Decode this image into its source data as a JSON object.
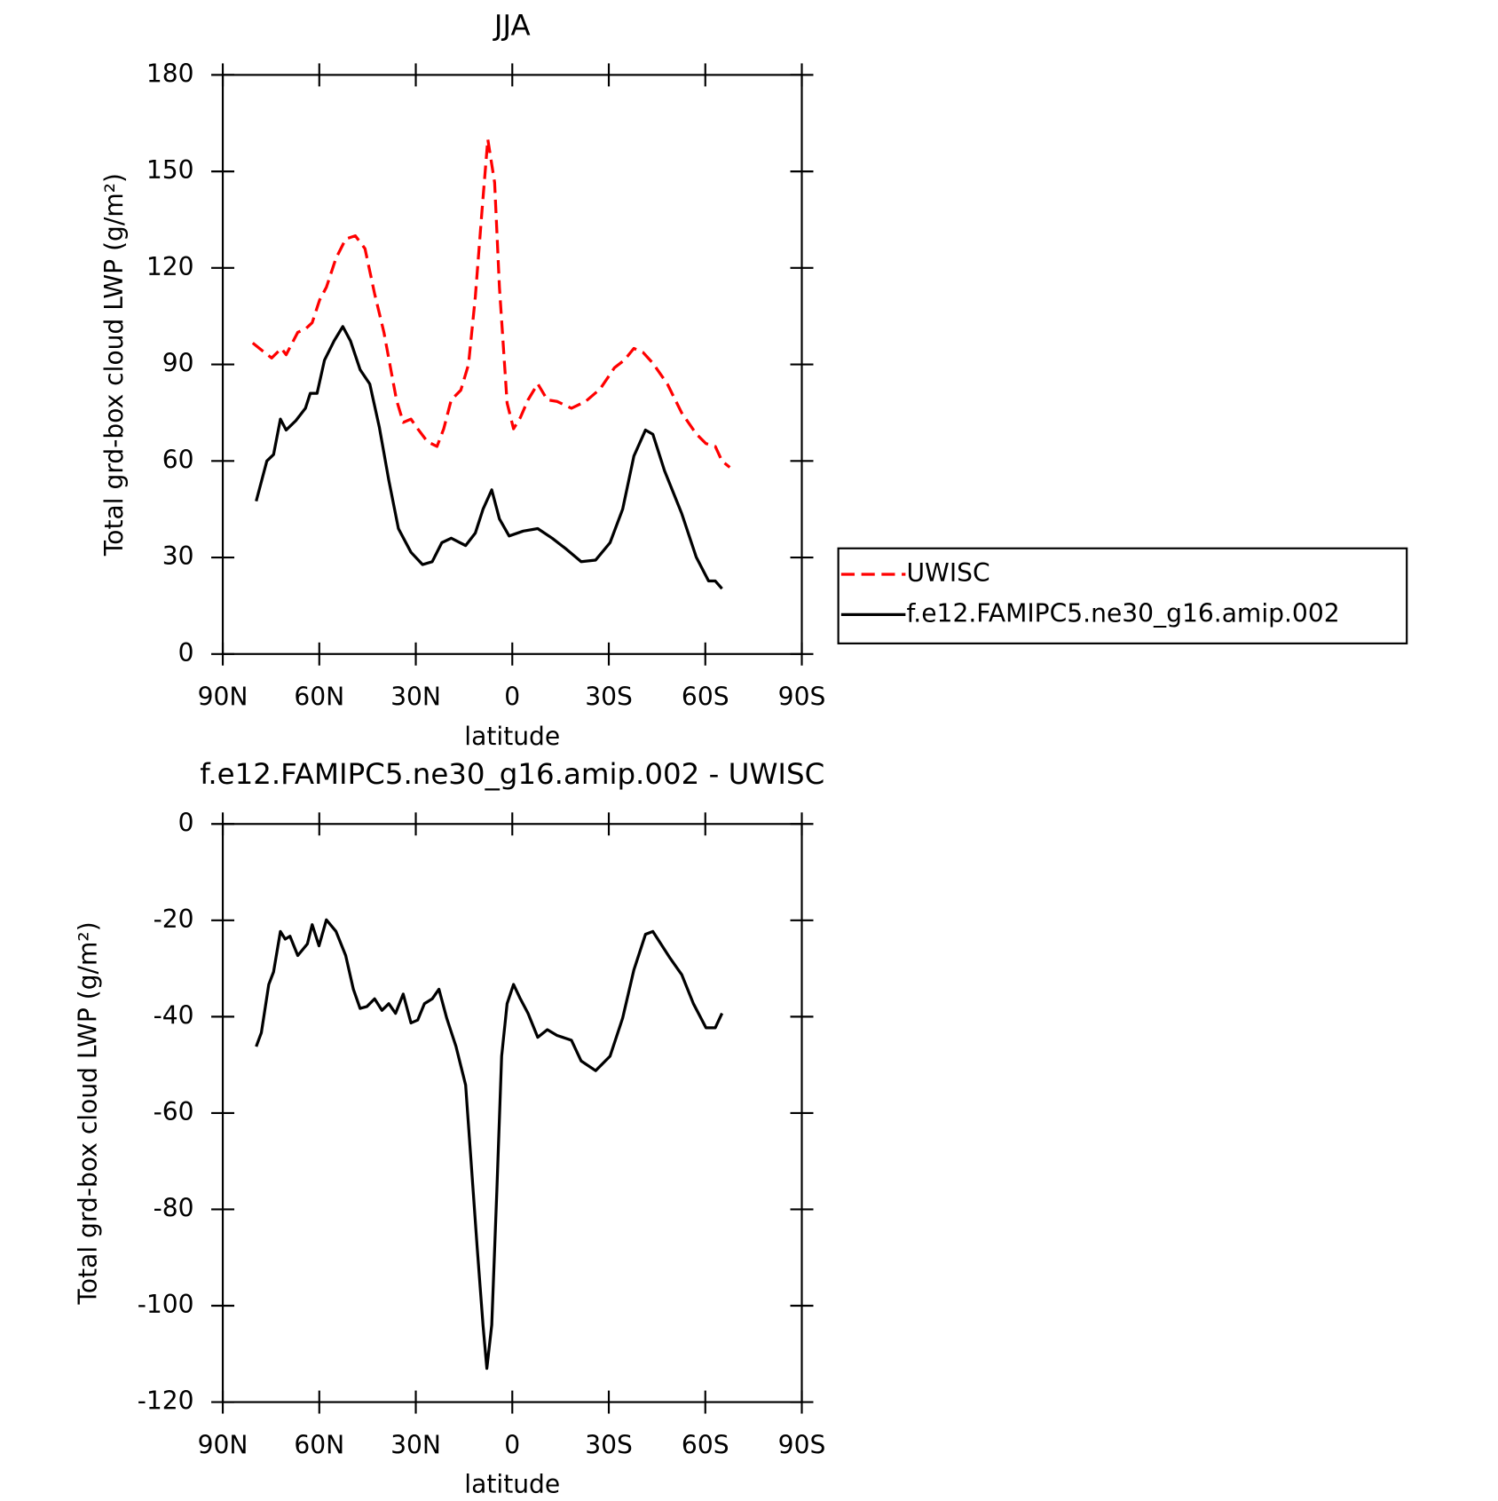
{
  "chart_data": [
    {
      "type": "line",
      "title": "JJA",
      "xlabel": "latitude",
      "ylabel": "Total grd-box cloud LWP (g/m²)",
      "xlim": [
        90,
        -90
      ],
      "xticks": [
        {
          "value": 90,
          "label": "90N"
        },
        {
          "value": 60,
          "label": "60N"
        },
        {
          "value": 30,
          "label": "30N"
        },
        0,
        {
          "value": -30,
          "label": "30S"
        },
        {
          "value": -60,
          "label": "60S"
        },
        {
          "value": -90,
          "label": "90S"
        }
      ],
      "ylim": [
        0,
        180
      ],
      "yticks": [
        0,
        30,
        60,
        90,
        120,
        150,
        180
      ],
      "legend": true,
      "series": [
        {
          "name": "UWISC",
          "color": "#ff0000",
          "dashed": true,
          "x": [
            80.7,
            78.6,
            74.8,
            71.8,
            70.3,
            66.7,
            64.3,
            62.2,
            59.9,
            57.8,
            54.8,
            51.8,
            48.8,
            45.8,
            42.8,
            39.9,
            37.5,
            36,
            33.9,
            31.5,
            29.4,
            26.4,
            23.4,
            21.3,
            19,
            16,
            13.6,
            11.5,
            9.4,
            7.6,
            5.5,
            4,
            1.6,
            -0.4,
            -2.5,
            -4.9,
            -7.9,
            -10.9,
            -13.9,
            -18.4,
            -22.8,
            -27.3,
            -31.8,
            -34.8,
            -37.8,
            -40.7,
            -43.7,
            -48.2,
            -52.7,
            -57.2,
            -60.2,
            -63.1,
            -65.2,
            -67.6
          ],
          "values": [
            96.7,
            95,
            92,
            95,
            93,
            100,
            101,
            103,
            110,
            114,
            123,
            129,
            130,
            126,
            112,
            100,
            87,
            79,
            72,
            73,
            70,
            66,
            64.5,
            70,
            79,
            82,
            90,
            111,
            138,
            160,
            146.5,
            114,
            78,
            70,
            73.5,
            79,
            84,
            79,
            78.5,
            76.4,
            78.5,
            82.4,
            89,
            91.3,
            95,
            93.7,
            90.4,
            83.9,
            74.9,
            68.4,
            65.4,
            64.5,
            60,
            58
          ]
        },
        {
          "name": "f.e12.FAMIPC5.ne30_g16.amip.002",
          "color": "#000000",
          "dashed": false,
          "x": [
            79.6,
            76.3,
            74.2,
            72.1,
            70.3,
            67.3,
            64.3,
            62.8,
            60.7,
            58.4,
            55.4,
            52.7,
            50.3,
            47.3,
            44.3,
            41.3,
            38.4,
            35.4,
            31.5,
            27.9,
            24.9,
            21.9,
            19,
            14.5,
            11.5,
            9.1,
            6.4,
            4,
            1,
            -3.4,
            -7.9,
            -12.4,
            -16.9,
            -21.4,
            -25.9,
            -30.4,
            -34.3,
            -37.8,
            -41.4,
            -43.7,
            -47.3,
            -52.7,
            -57.2,
            -61,
            -63.1,
            -65.2
          ],
          "values": [
            47.5,
            60,
            62,
            73,
            69.6,
            72.5,
            76.4,
            81,
            81,
            91.3,
            97.3,
            101.8,
            97.3,
            88.4,
            83.9,
            70.4,
            54,
            39,
            31.6,
            27.8,
            28.7,
            34.6,
            36,
            33.7,
            37.6,
            45,
            51,
            42,
            36.7,
            38.2,
            39,
            36,
            32.5,
            28.7,
            29.2,
            34.6,
            45,
            61.5,
            69.6,
            68.3,
            57,
            43.6,
            30.1,
            22.7,
            22.7,
            20.3
          ]
        }
      ]
    },
    {
      "type": "line",
      "title": "f.e12.FAMIPC5.ne30_g16.amip.002 - UWISC",
      "xlabel": "latitude",
      "ylabel": "Total grd-box cloud LWP (g/m²)",
      "xlim": [
        90,
        -90
      ],
      "xticks": [
        {
          "value": 90,
          "label": "90N"
        },
        {
          "value": 60,
          "label": "60N"
        },
        {
          "value": 30,
          "label": "30N"
        },
        0,
        {
          "value": -30,
          "label": "30S"
        },
        {
          "value": -60,
          "label": "60S"
        },
        {
          "value": -90,
          "label": "90S"
        }
      ],
      "ylim": [
        -120,
        0
      ],
      "yticks": [
        -120,
        -100,
        -80,
        -60,
        -40,
        -20,
        0
      ],
      "legend": false,
      "series": [
        {
          "color": "#000000",
          "dashed": false,
          "x": [
            79.6,
            78,
            75.7,
            74.2,
            72.1,
            70.6,
            69.1,
            66.7,
            63.7,
            62.2,
            60.1,
            57.8,
            54.8,
            51.8,
            49.4,
            47.3,
            45.2,
            42.8,
            40.5,
            38.4,
            36.3,
            33.9,
            31.5,
            29.4,
            27.3,
            24.9,
            22.8,
            20.4,
            17.5,
            14.5,
            13,
            10.9,
            9.1,
            7.9,
            6.4,
            4.8,
            3.3,
            1.6,
            -0.4,
            -2.5,
            -4.9,
            -7.9,
            -10.9,
            -13.9,
            -18.4,
            -21.4,
            -25.9,
            -30.4,
            -34.3,
            -37.8,
            -41.4,
            -43.7,
            -49.1,
            -52.7,
            -56.3,
            -60.2,
            -63.1,
            -65.2
          ],
          "values": [
            -46.2,
            -43.3,
            -33.3,
            -30.7,
            -22.3,
            -23.9,
            -23.3,
            -27.3,
            -24.9,
            -20.9,
            -25.3,
            -19.9,
            -22.3,
            -27.3,
            -34.3,
            -38.3,
            -37.9,
            -36.3,
            -38.7,
            -37.3,
            -39.3,
            -35.3,
            -41.3,
            -40.7,
            -37.3,
            -36.3,
            -34.3,
            -40.3,
            -46.2,
            -54.2,
            -68.2,
            -88.1,
            -104,
            -113,
            -104,
            -76.2,
            -48.2,
            -37.3,
            -33.3,
            -36.3,
            -39.3,
            -44.3,
            -42.7,
            -43.9,
            -44.9,
            -49.2,
            -51.2,
            -48.2,
            -40.3,
            -30.3,
            -22.9,
            -22.3,
            -27.9,
            -31.3,
            -37.3,
            -42.3,
            -42.3,
            -39.3
          ]
        }
      ]
    }
  ]
}
